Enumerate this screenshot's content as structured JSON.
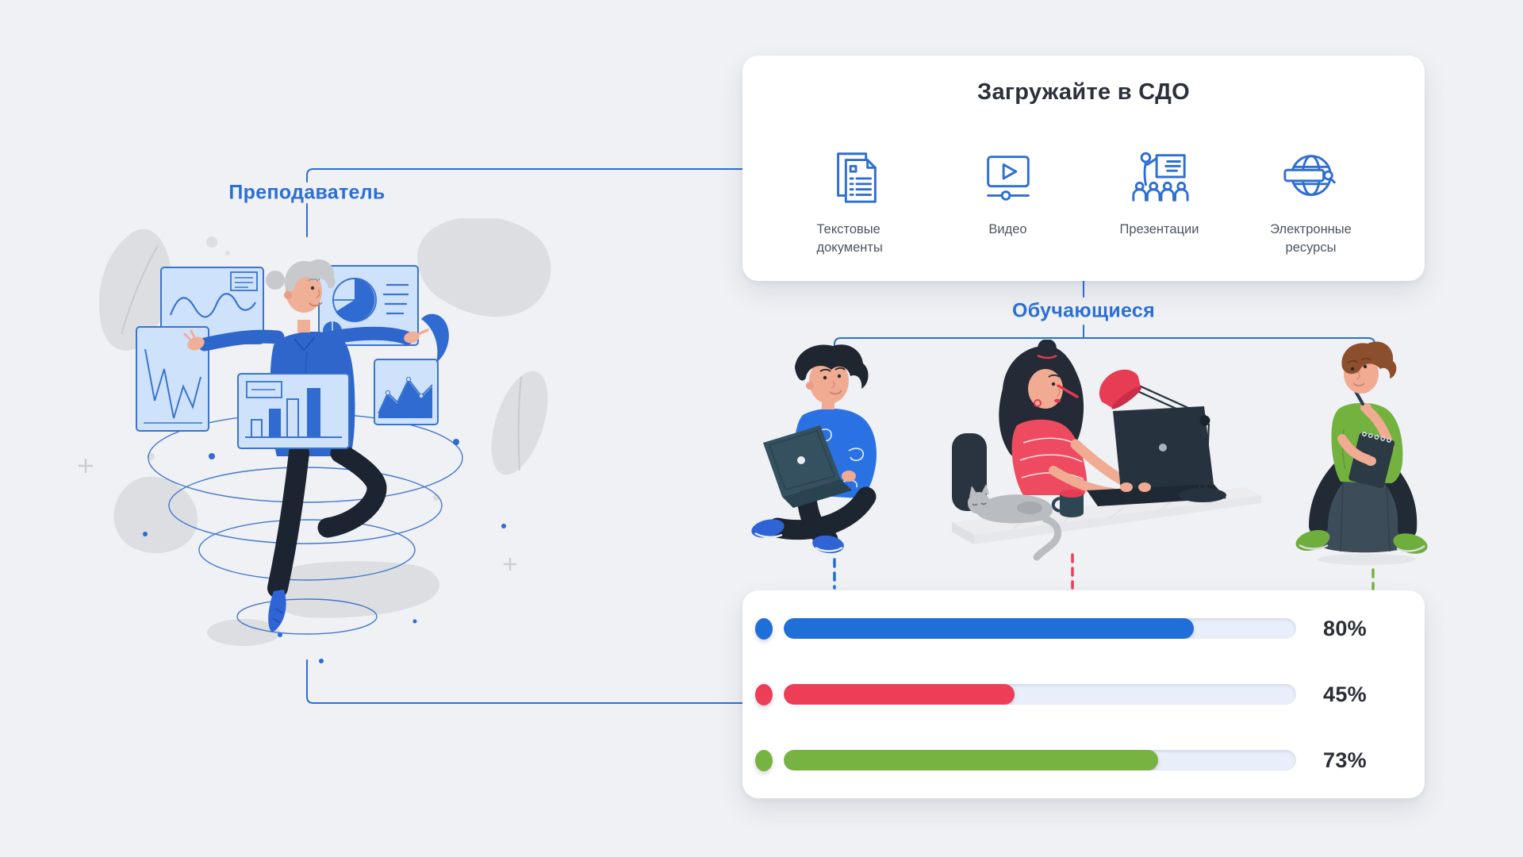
{
  "page": {
    "background": "#eff1f4",
    "accent_blue": "#2b6fd4"
  },
  "upload_card": {
    "title": "Загружайте в СДО",
    "items": [
      {
        "icon": "text-documents-icon",
        "label": "Текстовые документы"
      },
      {
        "icon": "video-player-icon",
        "label": "Видео"
      },
      {
        "icon": "presentation-audience-icon",
        "label": "Презентации"
      },
      {
        "icon": "globe-search-icon",
        "label": "Электронные ресурсы"
      }
    ]
  },
  "teacher": {
    "label": "Преподаватель",
    "illustration": "teacher-with-floating-charts"
  },
  "students": {
    "label": "Обучающиеся",
    "figures": [
      {
        "illustration": "student-sitting-cross-legged-with-laptop",
        "color": "#1f6fd8"
      },
      {
        "illustration": "student-at-desk-with-laptop-lamp-and-cat",
        "color": "#ee3e57"
      },
      {
        "illustration": "student-on-pouf-with-notebook-and-pen",
        "color": "#77b340"
      }
    ]
  },
  "progress_card": {
    "track_color": "#e9effa",
    "bars": [
      {
        "label": "80%",
        "value": 80,
        "color": "#1f6fd8"
      },
      {
        "label": "45%",
        "value": 45,
        "color": "#ee3e57"
      },
      {
        "label": "73%",
        "value": 73,
        "color": "#77b340"
      }
    ]
  },
  "chart_data": {
    "type": "bar",
    "categories": [
      "blue",
      "red",
      "green"
    ],
    "values": [
      80,
      45,
      73
    ],
    "unit": "%",
    "ylim": [
      0,
      100
    ],
    "title": ""
  }
}
